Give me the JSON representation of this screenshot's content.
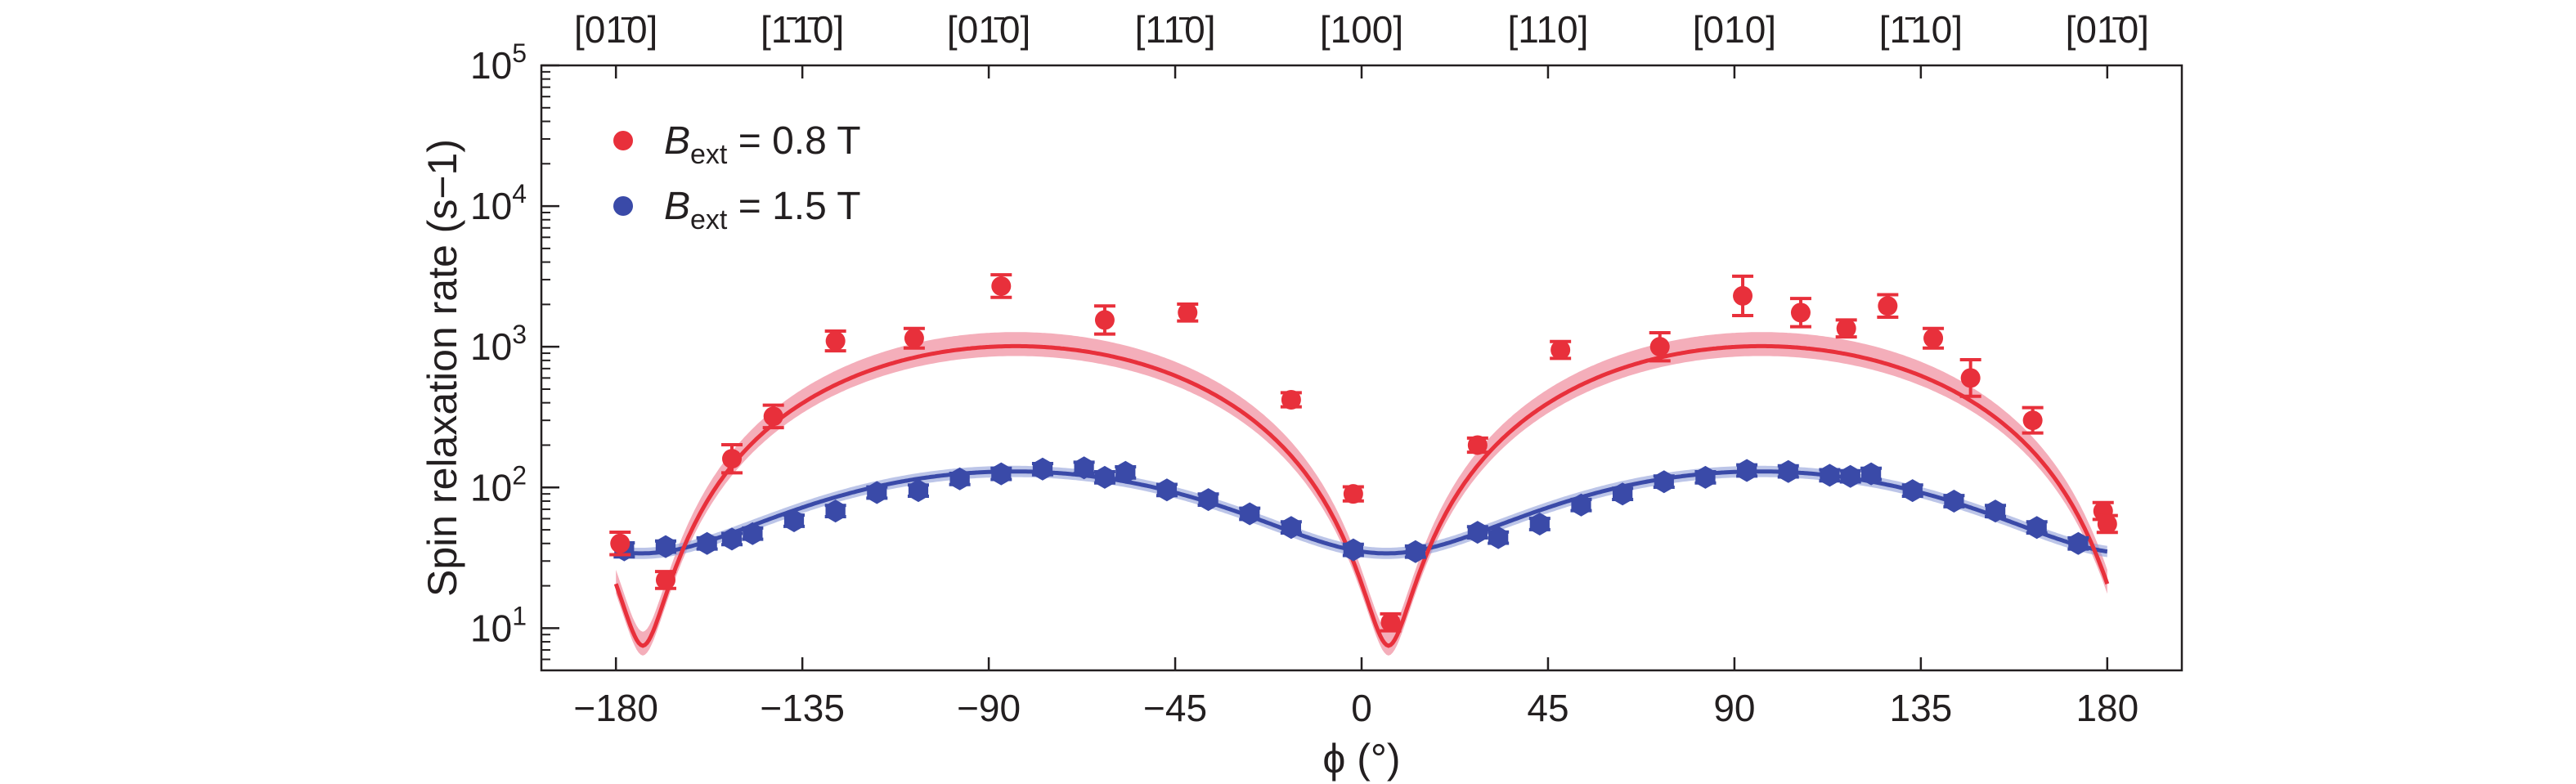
{
  "chart_data": {
    "type": "scatter",
    "title": "",
    "xlabel": "ϕ (°)",
    "ylabel": "Spin relaxation rate (s−1)",
    "x_ticks": [
      -180,
      -135,
      -90,
      -45,
      0,
      45,
      90,
      135,
      180
    ],
    "xlim": [
      -198,
      198
    ],
    "ylim_log10": [
      0.7,
      5
    ],
    "y_ticks": [
      {
        "value": 10,
        "base": "10",
        "exp": "1"
      },
      {
        "value": 100,
        "base": "10",
        "exp": "2"
      },
      {
        "value": 1000,
        "base": "10",
        "exp": "3"
      },
      {
        "value": 10000,
        "base": "10",
        "exp": "4"
      },
      {
        "value": 100000,
        "base": "10",
        "exp": "5"
      }
    ],
    "top_axis_labels": [
      {
        "x": -180,
        "text": "[01̄0]"
      },
      {
        "x": -135,
        "text": "[1̄1̄0]"
      },
      {
        "x": -90,
        "text": "[01̄0]"
      },
      {
        "x": -45,
        "text": "[11̄0]"
      },
      {
        "x": 0,
        "text": "[100]"
      },
      {
        "x": 45,
        "text": "[110]"
      },
      {
        "x": 90,
        "text": "[010]"
      },
      {
        "x": 135,
        "text": "[1̄10]"
      },
      {
        "x": 180,
        "text": "[01̄0]"
      }
    ],
    "legend_position": "top-left",
    "series": [
      {
        "name": "B_ext = 0.8 T",
        "legend_symbol": "B",
        "legend_subscript": "ext",
        "legend_rest": " = 0.8 T",
        "color": "#e8303b",
        "band_color": "#f2a0ae",
        "points": [
          {
            "x": -179,
            "y": 40,
            "err": 0.08
          },
          {
            "x": -168,
            "y": 22,
            "err": 0.06
          },
          {
            "x": -152,
            "y": 160,
            "err": 0.1
          },
          {
            "x": -142,
            "y": 320,
            "err": 0.08
          },
          {
            "x": -127,
            "y": 1100,
            "err": 0.07
          },
          {
            "x": -108,
            "y": 1150,
            "err": 0.07
          },
          {
            "x": -87,
            "y": 2700,
            "err": 0.08
          },
          {
            "x": -62,
            "y": 1550,
            "err": 0.1
          },
          {
            "x": -42,
            "y": 1750,
            "err": 0.06
          },
          {
            "x": -17,
            "y": 420,
            "err": 0.05
          },
          {
            "x": -2,
            "y": 90,
            "err": 0.05
          },
          {
            "x": 7,
            "y": 11,
            "err": 0.06
          },
          {
            "x": 28,
            "y": 200,
            "err": 0.05
          },
          {
            "x": 48,
            "y": 950,
            "err": 0.06
          },
          {
            "x": 72,
            "y": 1000,
            "err": 0.1
          },
          {
            "x": 92,
            "y": 2300,
            "err": 0.14
          },
          {
            "x": 106,
            "y": 1750,
            "err": 0.1
          },
          {
            "x": 117,
            "y": 1350,
            "err": 0.06
          },
          {
            "x": 127,
            "y": 1950,
            "err": 0.08
          },
          {
            "x": 138,
            "y": 1150,
            "err": 0.07
          },
          {
            "x": 147,
            "y": 600,
            "err": 0.13
          },
          {
            "x": 162,
            "y": 300,
            "err": 0.09
          },
          {
            "x": 179,
            "y": 68,
            "err": 0.06
          },
          {
            "x": 180,
            "y": 55,
            "err": 0.06
          }
        ]
      },
      {
        "name": "B_ext = 1.5 T",
        "legend_symbol": "B",
        "legend_subscript": "ext",
        "legend_rest": " = 1.5 T",
        "color": "#3a4aa8",
        "band_color": "#8f9fd8",
        "points": [
          {
            "x": -178,
            "y": 36,
            "err": 0.05
          },
          {
            "x": -168,
            "y": 38,
            "err": 0.04
          },
          {
            "x": -158,
            "y": 40,
            "err": 0.04
          },
          {
            "x": -152,
            "y": 43,
            "err": 0.04
          },
          {
            "x": -147,
            "y": 47,
            "err": 0.04
          },
          {
            "x": -137,
            "y": 58,
            "err": 0.04
          },
          {
            "x": -127,
            "y": 68,
            "err": 0.04
          },
          {
            "x": -117,
            "y": 92,
            "err": 0.04
          },
          {
            "x": -107,
            "y": 95,
            "err": 0.04
          },
          {
            "x": -97,
            "y": 115,
            "err": 0.04
          },
          {
            "x": -87,
            "y": 125,
            "err": 0.04
          },
          {
            "x": -77,
            "y": 135,
            "err": 0.04
          },
          {
            "x": -67,
            "y": 138,
            "err": 0.04
          },
          {
            "x": -62,
            "y": 118,
            "err": 0.04
          },
          {
            "x": -57,
            "y": 128,
            "err": 0.04
          },
          {
            "x": -47,
            "y": 96,
            "err": 0.04
          },
          {
            "x": -37,
            "y": 82,
            "err": 0.04
          },
          {
            "x": -27,
            "y": 65,
            "err": 0.04
          },
          {
            "x": -17,
            "y": 52,
            "err": 0.04
          },
          {
            "x": -2,
            "y": 36,
            "err": 0.04
          },
          {
            "x": 13,
            "y": 35,
            "err": 0.04
          },
          {
            "x": 28,
            "y": 48,
            "err": 0.04
          },
          {
            "x": 33,
            "y": 44,
            "err": 0.04
          },
          {
            "x": 43,
            "y": 55,
            "err": 0.04
          },
          {
            "x": 53,
            "y": 75,
            "err": 0.04
          },
          {
            "x": 63,
            "y": 90,
            "err": 0.04
          },
          {
            "x": 73,
            "y": 110,
            "err": 0.04
          },
          {
            "x": 83,
            "y": 118,
            "err": 0.04
          },
          {
            "x": 93,
            "y": 132,
            "err": 0.04
          },
          {
            "x": 103,
            "y": 130,
            "err": 0.04
          },
          {
            "x": 113,
            "y": 122,
            "err": 0.04
          },
          {
            "x": 118,
            "y": 120,
            "err": 0.04
          },
          {
            "x": 123,
            "y": 125,
            "err": 0.04
          },
          {
            "x": 133,
            "y": 95,
            "err": 0.04
          },
          {
            "x": 143,
            "y": 80,
            "err": 0.04
          },
          {
            "x": 153,
            "y": 68,
            "err": 0.04
          },
          {
            "x": 163,
            "y": 52,
            "err": 0.04
          },
          {
            "x": 173,
            "y": 40,
            "err": 0.04
          }
        ]
      }
    ]
  }
}
